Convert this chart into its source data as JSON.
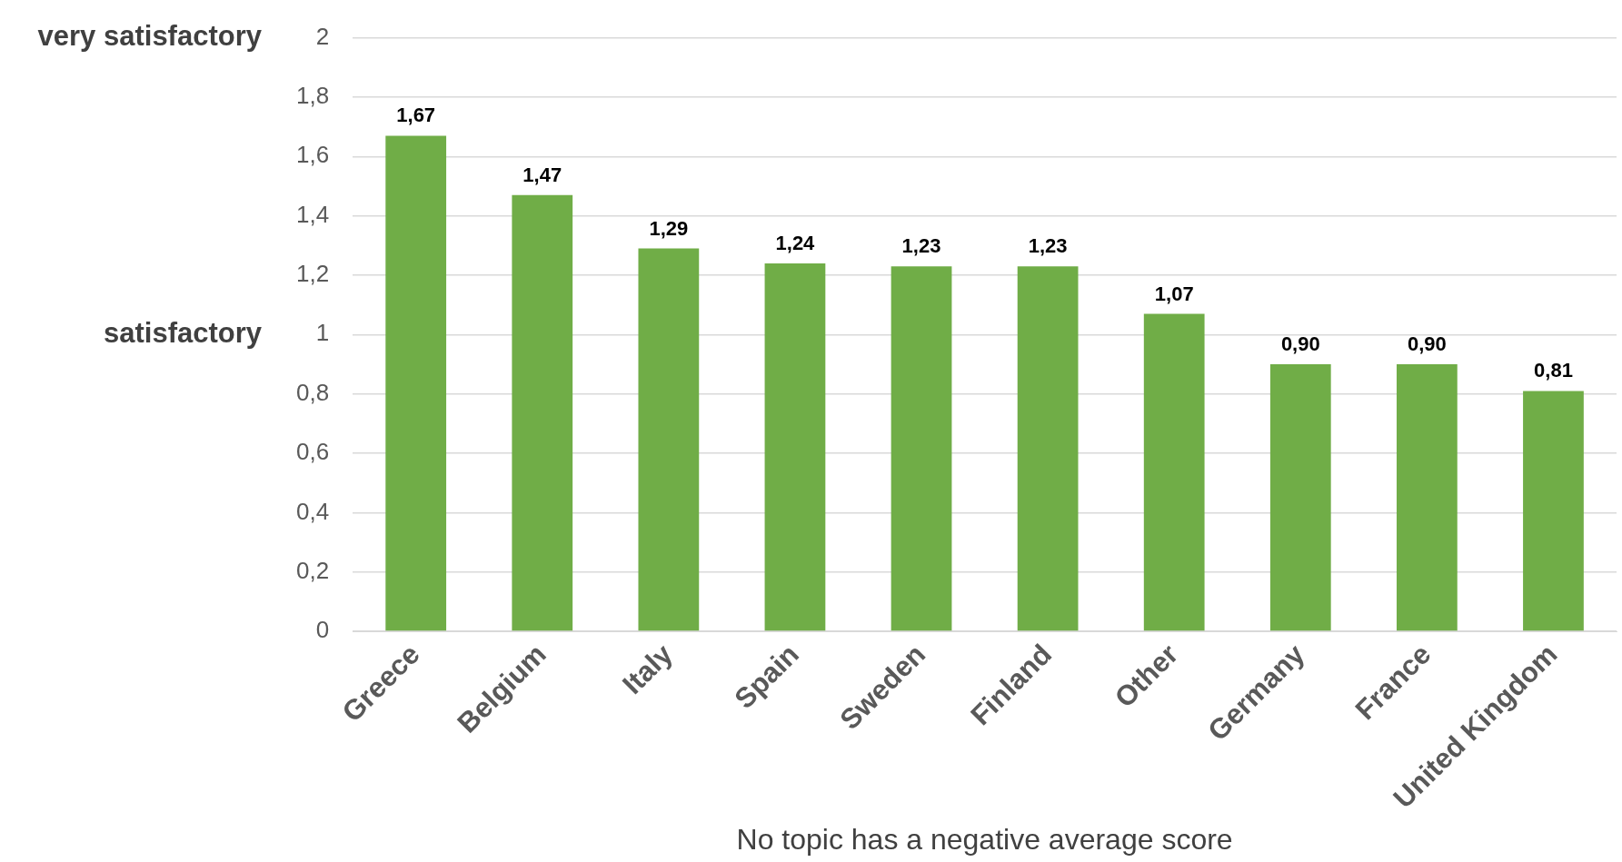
{
  "chart_data": {
    "type": "bar",
    "xlabel": "No topic has a negative average score",
    "categories": [
      "Greece",
      "Belgium",
      "Italy",
      "Spain",
      "Sweden",
      "Finland",
      "Other",
      "Germany",
      "France",
      "United Kingdom"
    ],
    "values": [
      1.67,
      1.47,
      1.29,
      1.24,
      1.23,
      1.23,
      1.07,
      0.9,
      0.9,
      0.81
    ],
    "value_labels": [
      "1,67",
      "1,47",
      "1,29",
      "1,24",
      "1,23",
      "1,23",
      "1,07",
      "0,90",
      "0,90",
      "0,81"
    ],
    "color": "#70ad47",
    "ylim": [
      0,
      2
    ],
    "yticks": [
      0,
      {
        "value": 0.2,
        "label": "0,2"
      },
      {
        "value": 0.4,
        "label": "0,4"
      },
      {
        "value": 0.6,
        "label": "0,6"
      },
      {
        "value": 0.8,
        "label": "0,8"
      },
      1,
      {
        "value": 1.2,
        "label": "1,2"
      },
      {
        "value": 1.4,
        "label": "1,4"
      },
      {
        "value": 1.6,
        "label": "1,6"
      },
      {
        "value": 1.8,
        "label": "1,8"
      },
      2
    ],
    "annotations": [
      "very satisfactory",
      "satisfactory"
    ],
    "grid": "y",
    "legend": false
  }
}
